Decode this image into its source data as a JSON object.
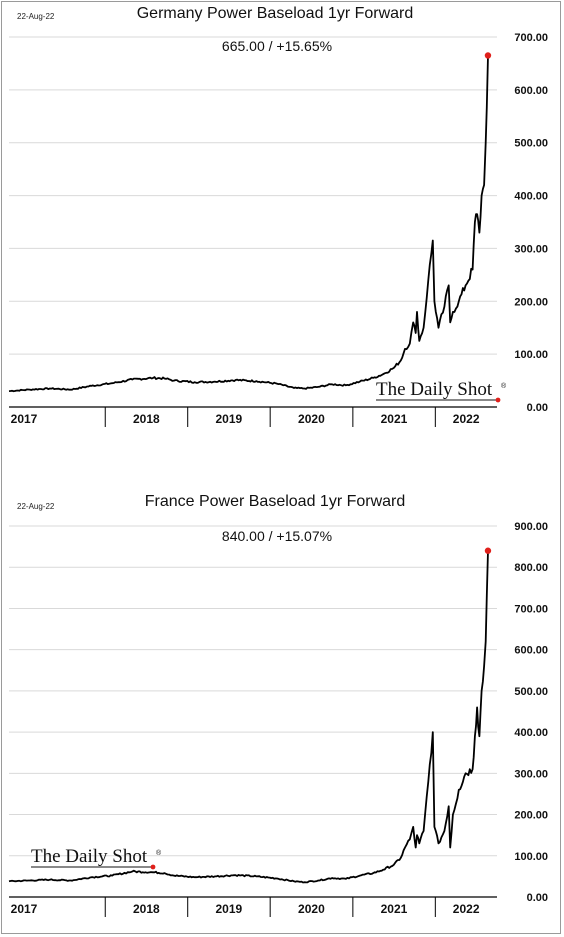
{
  "brand": {
    "logo_text": "The Daily Shot",
    "logo_mark": "®",
    "colors": {
      "line": "#000000",
      "endpoint": "#e0201b",
      "grid": "#d9d9d9",
      "axis": "#000000"
    }
  },
  "chart_data": [
    {
      "type": "line",
      "title": "Germany Power Baseload 1yr Forward",
      "subtitle": "665.00  /  +15.65%",
      "date_label": "22-Aug-22",
      "x_categories": [
        "2017",
        "2018",
        "2019",
        "2020",
        "2021",
        "2022"
      ],
      "ylim": [
        0,
        700
      ],
      "yticks": [
        "0.00",
        "100.00",
        "200.00",
        "300.00",
        "400.00",
        "500.00",
        "600.00",
        "700.00"
      ],
      "y_axis_side": "right",
      "grid": true,
      "legend": "none",
      "logo_position": "bottom-right",
      "series": [
        {
          "x": [
            "2016-11-01",
            "2017-02-01",
            "2017-05-01",
            "2017-08-01",
            "2017-11-01",
            "2018-02-01",
            "2018-05-01",
            "2018-08-01",
            "2018-09-20",
            "2018-11-01",
            "2019-02-01",
            "2019-05-01",
            "2019-08-01",
            "2019-11-01",
            "2020-02-01",
            "2020-04-15",
            "2020-06-01",
            "2020-08-01",
            "2020-10-01",
            "2020-12-01",
            "2021-02-01",
            "2021-04-01",
            "2021-05-15",
            "2021-07-01",
            "2021-08-01",
            "2021-08-20",
            "2021-09-10",
            "2021-09-25",
            "2021-10-06",
            "2021-10-12",
            "2021-10-22",
            "2021-11-10",
            "2021-12-01",
            "2021-12-21",
            "2021-12-28",
            "2022-01-15",
            "2022-02-10",
            "2022-03-01",
            "2022-03-08",
            "2022-03-20",
            "2022-04-15",
            "2022-05-15",
            "2022-06-15",
            "2022-06-25",
            "2022-07-05",
            "2022-07-15",
            "2022-07-25",
            "2022-08-05",
            "2022-08-12",
            "2022-08-22"
          ],
          "y": [
            30,
            33,
            35,
            33,
            40,
            45,
            52,
            55,
            54,
            50,
            47,
            48,
            51,
            49,
            44,
            36,
            35,
            38,
            43,
            41,
            48,
            55,
            62,
            74,
            88,
            110,
            120,
            160,
            140,
            180,
            125,
            150,
            240,
            315,
            200,
            150,
            190,
            230,
            160,
            180,
            200,
            230,
            260,
            350,
            365,
            330,
            400,
            420,
            500,
            665
          ]
        }
      ]
    },
    {
      "type": "line",
      "title": "France Power Baseload 1yr Forward",
      "subtitle": "840.00  /  +15.07%",
      "date_label": "22-Aug-22",
      "x_categories": [
        "2017",
        "2018",
        "2019",
        "2020",
        "2021",
        "2022"
      ],
      "ylim": [
        0,
        900
      ],
      "yticks": [
        "0.00",
        "100.00",
        "200.00",
        "300.00",
        "400.00",
        "500.00",
        "600.00",
        "700.00",
        "800.00",
        "900.00"
      ],
      "y_axis_side": "right",
      "grid": true,
      "legend": "none",
      "logo_position": "bottom-left",
      "series": [
        {
          "x": [
            "2016-11-01",
            "2017-02-01",
            "2017-05-01",
            "2017-08-01",
            "2017-11-01",
            "2018-02-01",
            "2018-05-01",
            "2018-08-01",
            "2018-09-20",
            "2018-11-01",
            "2019-02-01",
            "2019-05-01",
            "2019-08-01",
            "2019-11-01",
            "2020-02-01",
            "2020-04-15",
            "2020-06-01",
            "2020-08-01",
            "2020-10-01",
            "2020-12-01",
            "2021-02-01",
            "2021-04-01",
            "2021-05-15",
            "2021-07-01",
            "2021-08-01",
            "2021-08-20",
            "2021-09-10",
            "2021-09-25",
            "2021-10-06",
            "2021-10-12",
            "2021-10-22",
            "2021-11-10",
            "2021-12-01",
            "2021-12-21",
            "2021-12-28",
            "2022-01-15",
            "2022-02-10",
            "2022-03-01",
            "2022-03-08",
            "2022-03-20",
            "2022-04-15",
            "2022-05-15",
            "2022-06-15",
            "2022-06-25",
            "2022-07-05",
            "2022-07-15",
            "2022-07-25",
            "2022-08-05",
            "2022-08-12",
            "2022-08-22"
          ],
          "y": [
            38,
            40,
            42,
            40,
            48,
            52,
            62,
            60,
            58,
            52,
            48,
            50,
            53,
            50,
            45,
            38,
            36,
            40,
            46,
            44,
            52,
            58,
            66,
            78,
            95,
            120,
            140,
            170,
            120,
            150,
            130,
            160,
            280,
            400,
            170,
            130,
            160,
            220,
            120,
            200,
            260,
            300,
            310,
            390,
            460,
            390,
            500,
            560,
            620,
            840
          ]
        }
      ]
    }
  ]
}
